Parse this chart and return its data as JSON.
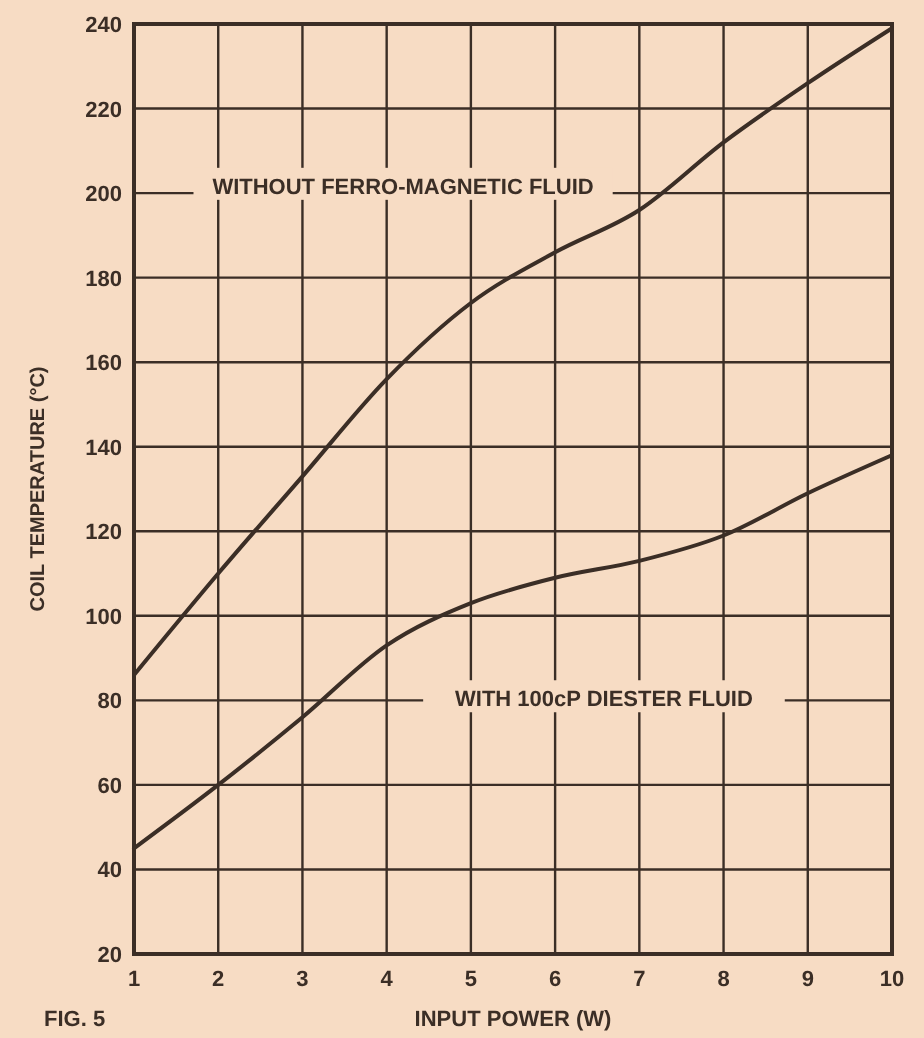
{
  "chart_data": {
    "type": "line",
    "xlabel": "INPUT POWER (W)",
    "ylabel": "COIL TEMPERATURE (°C)",
    "x": [
      1,
      2,
      3,
      4,
      5,
      6,
      7,
      8,
      9,
      10
    ],
    "series": [
      {
        "color": "#3b2e26",
        "values": [
          86,
          110,
          133,
          156,
          174,
          186,
          196,
          212,
          226,
          239
        ]
      },
      {
        "color": "#3b2e26",
        "values": [
          45,
          60,
          76,
          93,
          103,
          109,
          113,
          119,
          129,
          138
        ]
      }
    ],
    "xlim": [
      1,
      10
    ],
    "xticks": [
      1,
      2,
      3,
      4,
      5,
      6,
      7,
      8,
      9,
      10
    ],
    "ylim": [
      20,
      240
    ],
    "yticks": [
      20,
      40,
      60,
      80,
      100,
      120,
      140,
      160,
      180,
      200,
      220,
      240
    ],
    "grid": true,
    "marker": "none",
    "line_style": "solid",
    "annotations": [
      "WITHOUT FERRO-MAGNETIC FLUID",
      "WITH 100cP DIESTER FLUID",
      "FIG. 5"
    ]
  }
}
